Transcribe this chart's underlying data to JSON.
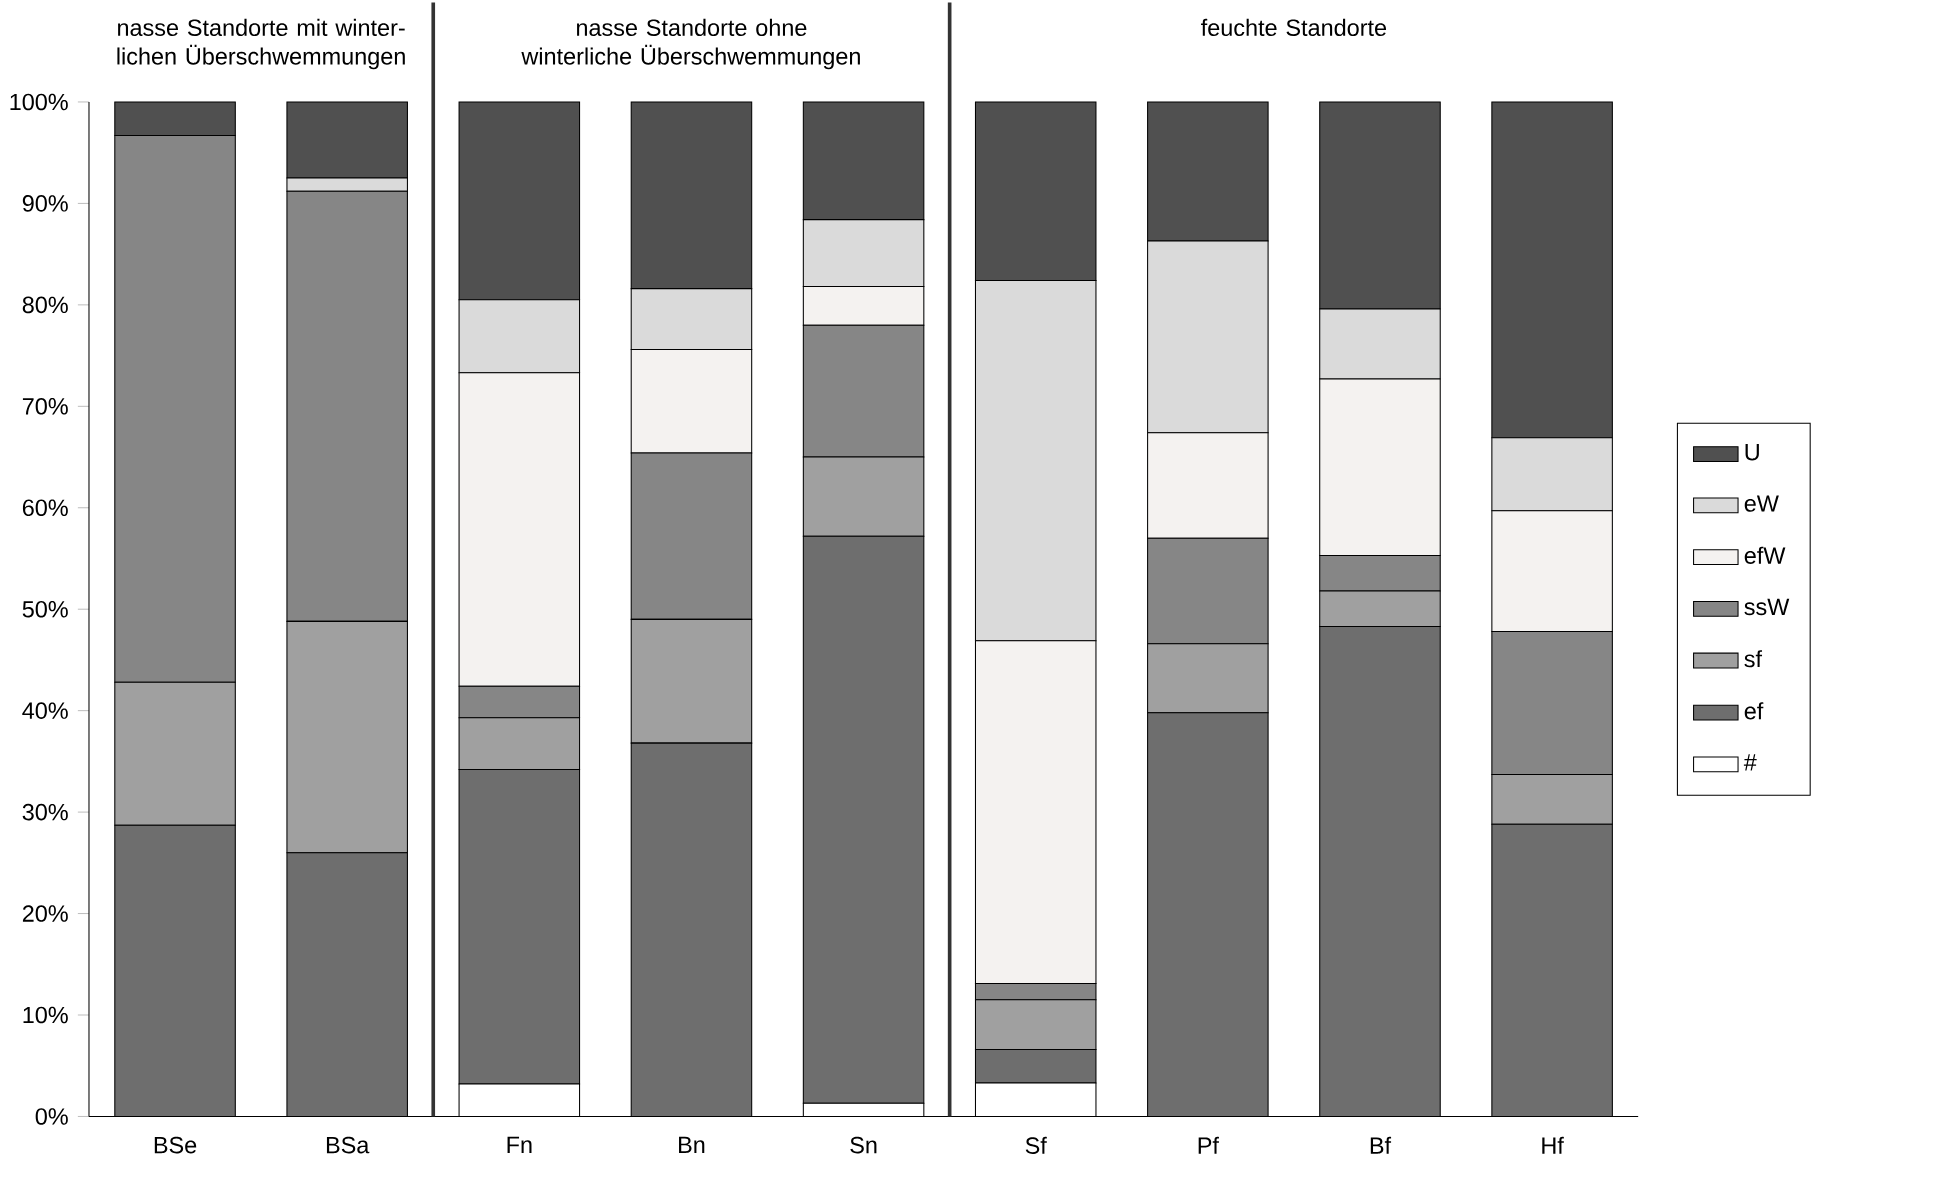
{
  "chart_data": {
    "type": "bar",
    "stacked": true,
    "legend": "right",
    "categories": [
      "BSe",
      "BSa",
      "Fn",
      "Bn",
      "Sn",
      "Sf",
      "Pf",
      "Bf",
      "Hf"
    ],
    "series": [
      {
        "name": "#",
        "color": "#ffffff",
        "values": [
          0,
          0,
          3.2,
          0,
          1.3,
          3.3,
          0,
          0,
          0
        ]
      },
      {
        "name": "ef",
        "color": "#6e6e6e",
        "values": [
          28.7,
          26,
          31,
          36.8,
          55.9,
          3.3,
          39.8,
          48.3,
          28.8
        ]
      },
      {
        "name": "sf",
        "color": "#a0a0a0",
        "values": [
          14.1,
          22.8,
          5.1,
          12.2,
          7.8,
          4.9,
          6.8,
          3.5,
          4.9
        ]
      },
      {
        "name": "ssW",
        "color": "#868686",
        "values": [
          53.9,
          42.4,
          3.1,
          16.4,
          13,
          1.6,
          10.4,
          3.5,
          14.1
        ]
      },
      {
        "name": "efW",
        "color": "#f4f2f0",
        "values": [
          0,
          0,
          30.9,
          10.2,
          3.8,
          33.8,
          10.4,
          17.4,
          11.9
        ]
      },
      {
        "name": "eW",
        "color": "#dadada",
        "values": [
          0,
          1.3,
          7.2,
          6,
          6.6,
          35.5,
          18.9,
          6.9,
          7.2
        ]
      },
      {
        "name": "U",
        "color": "#505050",
        "values": [
          3.3,
          7.5,
          19.5,
          18.4,
          11.6,
          17.6,
          13.7,
          20.4,
          33.1
        ]
      }
    ],
    "ylim": [
      0,
      100
    ],
    "yticks": [
      {
        "value": 0,
        "label": "0%"
      },
      {
        "value": 10,
        "label": "10%"
      },
      {
        "value": 20,
        "label": "20%"
      },
      {
        "value": 30,
        "label": "30%"
      },
      {
        "value": 40,
        "label": "40%"
      },
      {
        "value": 50,
        "label": "50%"
      },
      {
        "value": 60,
        "label": "60%"
      },
      {
        "value": 70,
        "label": "70%"
      },
      {
        "value": 80,
        "label": "80%"
      },
      {
        "value": 90,
        "label": "90%"
      },
      {
        "value": 100,
        "label": "100%"
      }
    ],
    "annotations": [
      "nasse Standorte mit winter- lichen Überschwemmungen",
      "nasse Standorte ohne winterliche Überschwemmungen",
      "feuchte Standorte"
    ]
  }
}
